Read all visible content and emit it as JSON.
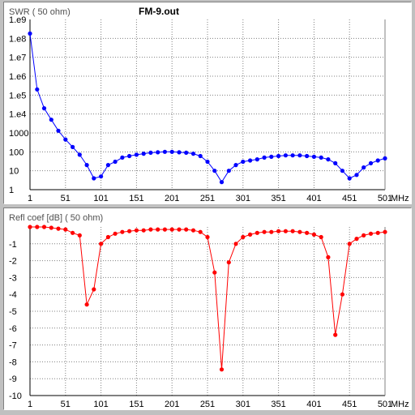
{
  "window": {
    "file_title": "FM-9.out"
  },
  "chart_data": [
    {
      "type": "line",
      "ylabel": "SWR ( 50 ohm)",
      "xlabel": "MHz",
      "y_scale": "log",
      "ylim": [
        1,
        1000000000
      ],
      "xlim": [
        1,
        501
      ],
      "y_ticks": [
        "1",
        "10",
        "100",
        "1000",
        "1.e4",
        "1.e5",
        "1.e6",
        "1.e7",
        "1.e8",
        "1.e9"
      ],
      "x_ticks": [
        "1",
        "51",
        "101",
        "151",
        "201",
        "251",
        "301",
        "351",
        "401",
        "451",
        "501"
      ],
      "grid": true,
      "color": "#0000ff",
      "series": [
        {
          "x": [
            1,
            11,
            21,
            31,
            41,
            51,
            61,
            71,
            81,
            91,
            101,
            111,
            121,
            131,
            141,
            151,
            161,
            171,
            181,
            191,
            201,
            211,
            221,
            231,
            241,
            251,
            261,
            271,
            281,
            291,
            301,
            311,
            321,
            331,
            341,
            351,
            361,
            371,
            381,
            391,
            401,
            411,
            421,
            431,
            441,
            451,
            461,
            471,
            481,
            491,
            501
          ],
          "y": [
            180000000,
            200000,
            20000,
            5000,
            1300,
            450,
            180,
            70,
            20,
            4,
            5,
            20,
            30,
            50,
            60,
            70,
            80,
            90,
            95,
            100,
            100,
            95,
            90,
            80,
            60,
            30,
            10,
            2.5,
            10,
            20,
            30,
            35,
            40,
            50,
            55,
            60,
            65,
            65,
            65,
            60,
            55,
            50,
            40,
            25,
            10,
            4,
            6,
            15,
            25,
            35,
            45
          ]
        }
      ]
    },
    {
      "type": "line",
      "ylabel": "Refl coef [dB] ( 50 ohm)",
      "xlabel": "MHz",
      "ylim": [
        -10,
        0
      ],
      "xlim": [
        1,
        501
      ],
      "y_ticks": [
        "-1",
        "-2",
        "-3",
        "-4",
        "-5",
        "-6",
        "-7",
        "-8",
        "-9",
        "-10"
      ],
      "x_ticks": [
        "1",
        "51",
        "101",
        "151",
        "201",
        "251",
        "301",
        "351",
        "401",
        "451",
        "501"
      ],
      "grid": true,
      "color": "#ff0000",
      "series": [
        {
          "x": [
            1,
            11,
            21,
            31,
            41,
            51,
            61,
            71,
            81,
            91,
            101,
            111,
            121,
            131,
            141,
            151,
            161,
            171,
            181,
            191,
            201,
            211,
            221,
            231,
            241,
            251,
            261,
            271,
            281,
            291,
            301,
            311,
            321,
            331,
            341,
            351,
            361,
            371,
            381,
            391,
            401,
            411,
            421,
            431,
            441,
            451,
            461,
            471,
            481,
            491,
            501
          ],
          "y": [
            0,
            0,
            0,
            -0.05,
            -0.1,
            -0.15,
            -0.35,
            -0.5,
            -4.6,
            -3.7,
            -1.0,
            -0.6,
            -0.4,
            -0.3,
            -0.25,
            -0.2,
            -0.2,
            -0.15,
            -0.15,
            -0.15,
            -0.15,
            -0.15,
            -0.15,
            -0.2,
            -0.3,
            -0.6,
            -2.7,
            -8.45,
            -2.1,
            -1.0,
            -0.6,
            -0.45,
            -0.35,
            -0.3,
            -0.3,
            -0.25,
            -0.25,
            -0.25,
            -0.3,
            -0.35,
            -0.45,
            -0.6,
            -1.8,
            -6.4,
            -4.0,
            -1.0,
            -0.7,
            -0.5,
            -0.4,
            -0.35,
            -0.3
          ]
        }
      ]
    }
  ]
}
